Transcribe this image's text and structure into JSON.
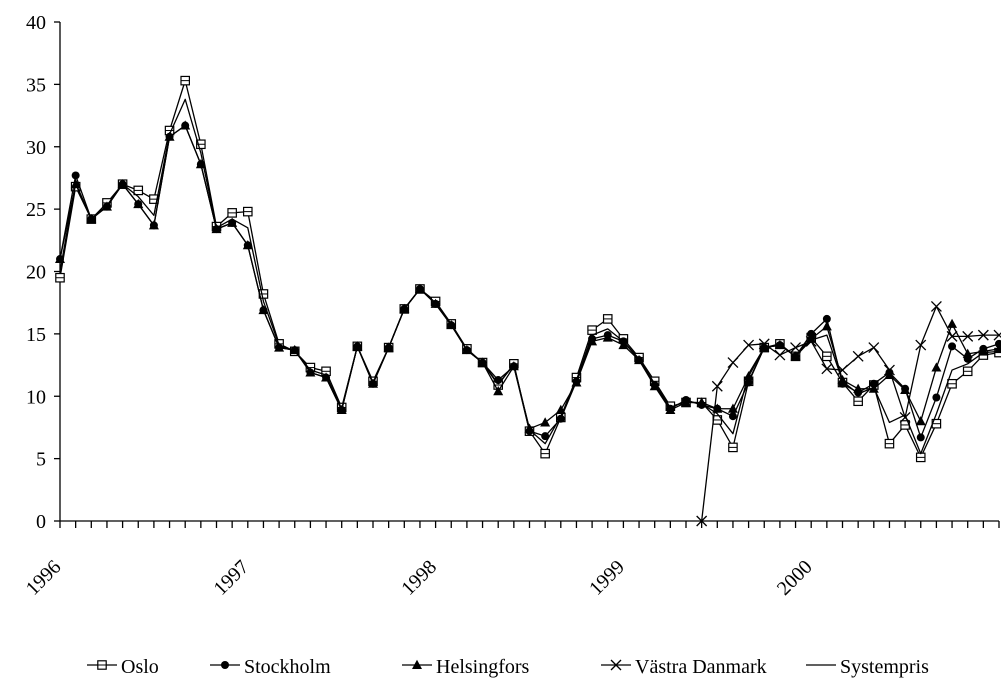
{
  "chart_data": {
    "type": "line",
    "title": "",
    "xlabel": "",
    "ylabel": "",
    "ylim": [
      0,
      40
    ],
    "y_ticks": [
      "0",
      "5",
      "10",
      "15",
      "20",
      "25",
      "30",
      "35",
      "40"
    ],
    "x_tick_labels": [
      "1996",
      "1997",
      "1998",
      "1999",
      "2000"
    ],
    "grid": false,
    "legend_position": "bottom",
    "x_period": "month",
    "x_start": "1996-01",
    "x": [
      "1996-01",
      "1996-02",
      "1996-03",
      "1996-04",
      "1996-05",
      "1996-06",
      "1996-07",
      "1996-08",
      "1996-09",
      "1996-10",
      "1996-11",
      "1996-12",
      "1997-01",
      "1997-02",
      "1997-03",
      "1997-04",
      "1997-05",
      "1997-06",
      "1997-07",
      "1997-08",
      "1997-09",
      "1997-10",
      "1997-11",
      "1997-12",
      "1998-01",
      "1998-02",
      "1998-03",
      "1998-04",
      "1998-05",
      "1998-06",
      "1998-07",
      "1998-08",
      "1998-09",
      "1998-10",
      "1998-11",
      "1998-12",
      "1999-01",
      "1999-02",
      "1999-03",
      "1999-04",
      "1999-05",
      "1999-06",
      "1999-07",
      "1999-08",
      "1999-09",
      "1999-10",
      "1999-11",
      "1999-12",
      "2000-01",
      "2000-02",
      "2000-03",
      "2000-04",
      "2000-05",
      "2000-06",
      "2000-07",
      "2000-08",
      "2000-09",
      "2000-10",
      "2000-11",
      "2000-12",
      "2001-01"
    ],
    "series": [
      {
        "name": "Oslo",
        "marker": "square",
        "values": [
          19.5,
          26.8,
          24.2,
          25.5,
          27.0,
          26.5,
          25.8,
          31.3,
          35.3,
          30.2,
          23.6,
          24.7,
          24.8,
          18.2,
          14.2,
          13.6,
          12.3,
          12.0,
          9.1,
          14.0,
          11.2,
          13.9,
          17.0,
          18.6,
          17.6,
          15.8,
          13.8,
          12.7,
          10.9,
          12.6,
          7.2,
          5.4,
          8.3,
          11.5,
          15.3,
          16.2,
          14.6,
          13.1,
          11.2,
          9.2,
          9.5,
          9.5,
          8.1,
          5.9,
          11.2,
          13.9,
          14.2,
          13.2,
          14.7,
          13.2,
          11.1,
          9.6,
          10.9,
          6.2,
          7.7,
          5.1,
          7.8,
          11.0,
          12.0,
          13.3,
          13.5
        ]
      },
      {
        "name": "Stockholm",
        "marker": "circle",
        "values": [
          21.0,
          27.7,
          24.2,
          25.2,
          27.0,
          25.4,
          23.7,
          30.8,
          31.7,
          28.6,
          23.4,
          23.9,
          22.1,
          16.9,
          13.9,
          13.7,
          11.9,
          11.5,
          8.9,
          14.0,
          11.0,
          13.9,
          17.0,
          18.6,
          17.4,
          15.7,
          13.7,
          12.7,
          11.3,
          12.4,
          7.2,
          6.8,
          8.2,
          11.2,
          14.6,
          14.9,
          14.4,
          12.9,
          10.9,
          9.0,
          9.7,
          9.3,
          9.0,
          8.4,
          11.1,
          13.9,
          14.1,
          13.2,
          15.0,
          16.2,
          11.0,
          10.3,
          11.0,
          11.9,
          10.6,
          6.7,
          9.9,
          14.0,
          13.0,
          13.8,
          14.2
        ]
      },
      {
        "name": "Helsingfors",
        "marker": "triangle",
        "values": [
          21.0,
          27.0,
          24.2,
          25.2,
          27.0,
          25.4,
          23.7,
          30.8,
          31.7,
          28.6,
          23.4,
          23.9,
          22.1,
          16.9,
          13.9,
          13.7,
          11.9,
          11.5,
          8.9,
          14.0,
          11.0,
          13.9,
          17.0,
          18.6,
          17.4,
          15.7,
          13.7,
          12.7,
          10.4,
          12.4,
          7.4,
          7.9,
          8.9,
          11.1,
          14.4,
          14.7,
          14.1,
          12.9,
          10.8,
          8.9,
          9.5,
          9.5,
          9.0,
          9.0,
          11.6,
          13.9,
          14.1,
          13.2,
          14.6,
          15.6,
          11.3,
          10.6,
          10.6,
          11.7,
          10.5,
          8.0,
          12.3,
          15.8,
          13.4,
          13.6,
          13.8
        ]
      },
      {
        "name": "Västra Danmark",
        "marker": "x",
        "values": [
          null,
          null,
          null,
          null,
          null,
          null,
          null,
          null,
          null,
          null,
          null,
          null,
          null,
          null,
          null,
          null,
          null,
          null,
          null,
          null,
          null,
          null,
          null,
          null,
          null,
          null,
          null,
          null,
          null,
          null,
          null,
          null,
          null,
          null,
          null,
          null,
          null,
          null,
          null,
          null,
          null,
          0.0,
          10.8,
          12.7,
          14.1,
          14.2,
          13.3,
          13.9,
          14.4,
          12.2,
          12.1,
          13.2,
          13.9,
          12.1,
          8.3,
          14.1,
          17.2,
          14.8,
          14.8,
          14.9,
          14.9
        ]
      },
      {
        "name": "Systempris",
        "marker": "none",
        "values": [
          20.0,
          27.1,
          24.2,
          25.3,
          27.0,
          26.0,
          24.5,
          31.0,
          33.8,
          29.5,
          23.5,
          24.2,
          23.5,
          17.6,
          14.1,
          13.6,
          12.1,
          11.7,
          9.0,
          14.0,
          11.1,
          13.9,
          17.0,
          18.6,
          17.5,
          15.8,
          13.7,
          12.7,
          11.0,
          12.5,
          7.3,
          6.2,
          8.4,
          11.3,
          14.9,
          15.4,
          14.4,
          13.0,
          11.0,
          9.1,
          9.6,
          9.4,
          8.6,
          7.0,
          11.8,
          13.9,
          14.1,
          13.2,
          14.5,
          14.9,
          11.2,
          10.2,
          10.7,
          7.9,
          8.5,
          5.4,
          8.6,
          12.1,
          12.6,
          13.5,
          13.6
        ]
      }
    ]
  }
}
